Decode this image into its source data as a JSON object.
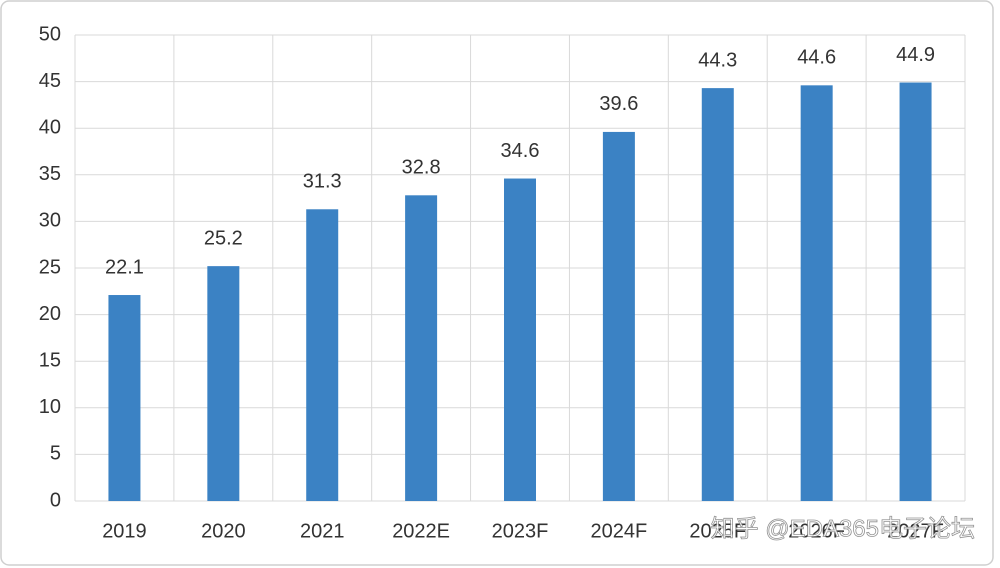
{
  "chart_data": {
    "type": "bar",
    "categories": [
      "2019",
      "2020",
      "2021",
      "2022E",
      "2023F",
      "2024F",
      "2025F",
      "2026F",
      "2027F"
    ],
    "values": [
      22.1,
      25.2,
      31.3,
      32.8,
      34.6,
      39.6,
      44.3,
      44.6,
      44.9
    ],
    "color": "#3b82c4",
    "ylim": [
      0,
      50
    ],
    "yticks": [
      0,
      5,
      10,
      15,
      20,
      25,
      30,
      35,
      40,
      45,
      50
    ],
    "grid": true,
    "watermark": "知乎 @EDA365电子论坛"
  }
}
